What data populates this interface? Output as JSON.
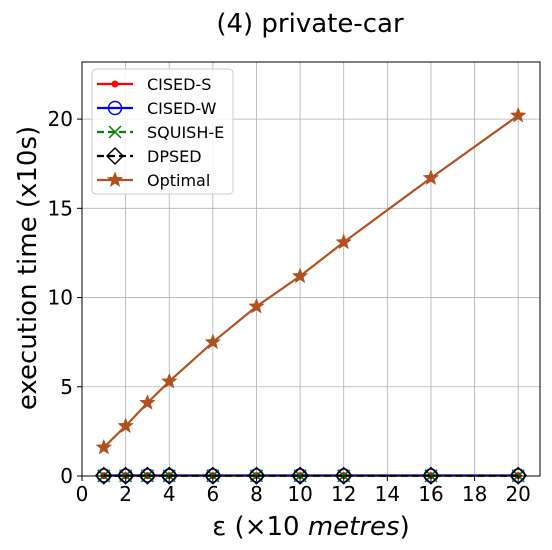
{
  "chart_data": {
    "type": "line",
    "title": "(4) private-car",
    "xlabel_prefix": "ε (×10 ",
    "xlabel_italic": "metres",
    "xlabel_suffix": ")",
    "ylabel": "execution time (x10s)",
    "xlim": [
      0,
      21
    ],
    "ylim": [
      0,
      23.2
    ],
    "xticks": [
      0,
      2,
      4,
      6,
      8,
      10,
      12,
      14,
      16,
      18,
      20
    ],
    "yticks": [
      0,
      5,
      10,
      15,
      20
    ],
    "grid": true,
    "legend_position": "top-left",
    "x": [
      1,
      2,
      3,
      4,
      6,
      8,
      10,
      12,
      16,
      20
    ],
    "series": [
      {
        "name": "CISED-S",
        "color": "#ff0000",
        "marker": "dot",
        "dash": "solid",
        "values": [
          0.02,
          0.02,
          0.02,
          0.02,
          0.02,
          0.02,
          0.02,
          0.02,
          0.02,
          0.02
        ]
      },
      {
        "name": "CISED-W",
        "color": "#0000ff",
        "marker": "circle",
        "dash": "solid",
        "values": [
          0.03,
          0.03,
          0.03,
          0.03,
          0.03,
          0.03,
          0.03,
          0.03,
          0.03,
          0.03
        ]
      },
      {
        "name": "SQUISH-E",
        "color": "#008000",
        "marker": "x",
        "dash": "dashed",
        "values": [
          0.01,
          0.01,
          0.01,
          0.01,
          0.01,
          0.01,
          0.01,
          0.01,
          0.01,
          0.01
        ]
      },
      {
        "name": "DPSED",
        "color": "#000000",
        "marker": "diamond",
        "dash": "dashed",
        "values": [
          0.02,
          0.02,
          0.02,
          0.02,
          0.02,
          0.02,
          0.02,
          0.02,
          0.02,
          0.02
        ]
      },
      {
        "name": "Optimal",
        "color": "#b0511f",
        "marker": "star",
        "dash": "solid",
        "values": [
          1.6,
          2.8,
          4.1,
          5.3,
          7.5,
          9.5,
          11.2,
          13.1,
          16.7,
          20.2
        ]
      }
    ]
  }
}
